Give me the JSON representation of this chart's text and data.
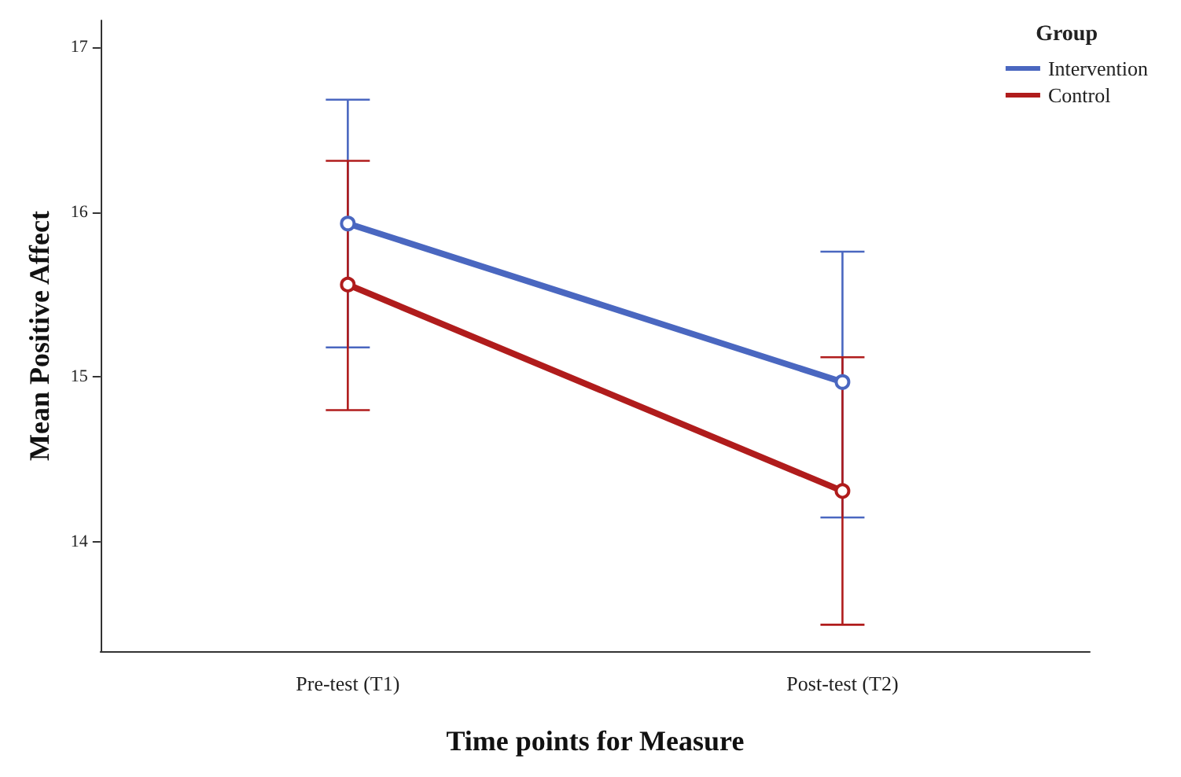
{
  "chart_data": {
    "type": "line",
    "xlabel": "Time points for Measure",
    "ylabel": "Mean Positive Affect",
    "legend_title": "Group",
    "categories": [
      "Pre-test (T1)",
      "Post-test (T2)"
    ],
    "series": [
      {
        "name": "Intervention",
        "color": "#4a67c0",
        "values": [
          15.93,
          14.97
        ],
        "errors": [
          [
            15.18,
            16.68
          ],
          [
            14.15,
            15.76
          ]
        ]
      },
      {
        "name": "Control",
        "color": "#b01c1c",
        "values": [
          15.56,
          14.31
        ],
        "errors": [
          [
            14.8,
            16.31
          ],
          [
            13.5,
            15.12
          ]
        ]
      }
    ],
    "ylim": [
      13.34,
      17.16
    ],
    "yticks": [
      14,
      15,
      16,
      17
    ],
    "grid": false,
    "legend": "top right",
    "marker": "circle",
    "line_style": "solid"
  }
}
